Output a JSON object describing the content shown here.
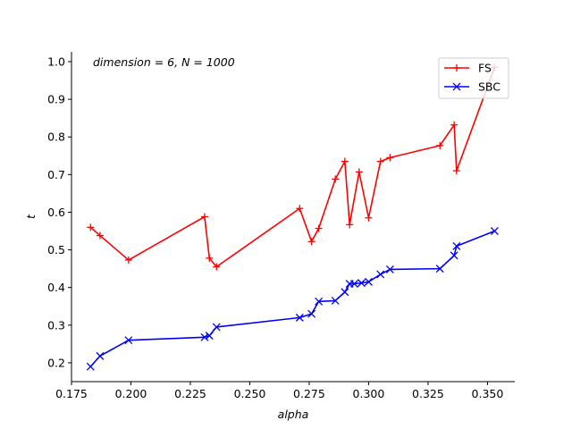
{
  "chart_data": {
    "type": "line",
    "annotation": "dimension = 6, N = 1000",
    "xlabel": "alpha",
    "ylabel": "t",
    "xlim": [
      0.175,
      0.3615
    ],
    "ylim": [
      0.15,
      1.026
    ],
    "xticks": [
      0.175,
      0.2,
      0.225,
      0.25,
      0.275,
      0.3,
      0.325,
      0.35
    ],
    "xtick_labels": [
      "0.175",
      "0.200",
      "0.225",
      "0.250",
      "0.275",
      "0.300",
      "0.325",
      "0.350"
    ],
    "yticks": [
      0.2,
      0.3,
      0.4,
      0.5,
      0.6,
      0.7,
      0.8,
      0.9,
      1.0
    ],
    "ytick_labels": [
      "0.2",
      "0.3",
      "0.4",
      "0.5",
      "0.6",
      "0.7",
      "0.8",
      "0.9",
      "1.0"
    ],
    "grid": false,
    "legend_position": "top-right",
    "series": [
      {
        "name": "FS",
        "color": "#ff0000",
        "marker": "plus",
        "x": [
          0.183,
          0.187,
          0.199,
          0.231,
          0.233,
          0.236,
          0.271,
          0.276,
          0.279,
          0.286,
          0.29,
          0.292,
          0.296,
          0.3,
          0.305,
          0.309,
          0.33,
          0.336,
          0.337,
          0.353
        ],
        "y": [
          0.56,
          0.538,
          0.473,
          0.588,
          0.478,
          0.455,
          0.61,
          0.522,
          0.557,
          0.688,
          0.735,
          0.567,
          0.707,
          0.585,
          0.735,
          0.745,
          0.777,
          0.832,
          0.71,
          0.985
        ]
      },
      {
        "name": "SBC",
        "color": "#0000ff",
        "marker": "x",
        "x": [
          0.183,
          0.187,
          0.199,
          0.231,
          0.233,
          0.236,
          0.271,
          0.276,
          0.279,
          0.286,
          0.29,
          0.292,
          0.294,
          0.297,
          0.3,
          0.305,
          0.309,
          0.33,
          0.336,
          0.337,
          0.353
        ],
        "y": [
          0.19,
          0.218,
          0.26,
          0.268,
          0.272,
          0.295,
          0.32,
          0.33,
          0.363,
          0.365,
          0.388,
          0.41,
          0.41,
          0.412,
          0.415,
          0.435,
          0.448,
          0.45,
          0.485,
          0.51,
          0.55
        ]
      }
    ]
  }
}
